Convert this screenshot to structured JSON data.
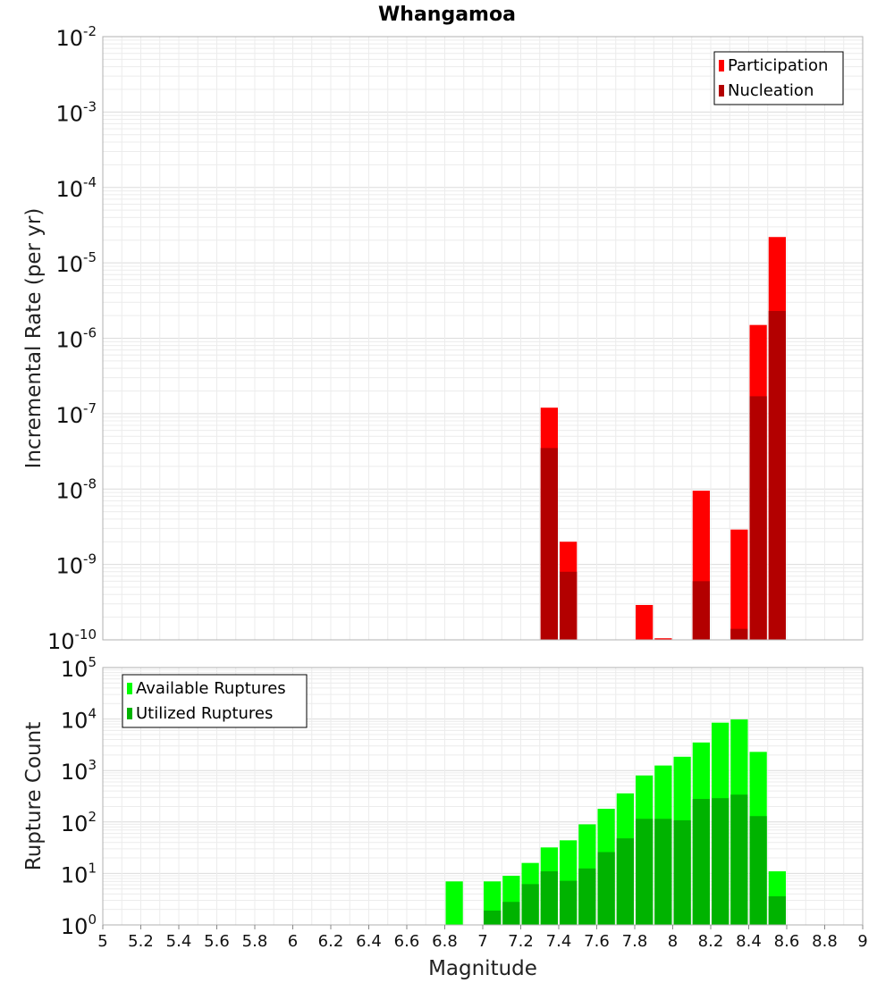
{
  "title": "Whangamoa",
  "chart_data": [
    {
      "type": "bar",
      "ylabel": "Incremental Rate (per yr)",
      "yscale": "log",
      "ylim": [
        1e-10,
        0.01
      ],
      "xlim": [
        5,
        9
      ],
      "grid": true,
      "legend_position": "top-right",
      "ytick_exps": [
        "-10",
        "-9",
        "-8",
        "-7",
        "-6",
        "-5",
        "-4",
        "-3",
        "-2"
      ],
      "series": [
        {
          "name": "Participation",
          "color": "#ff0000",
          "points": [
            {
              "x": 7.35,
              "y": 1.2e-07
            },
            {
              "x": 7.45,
              "y": 2e-09
            },
            {
              "x": 7.85,
              "y": 2.9e-10
            },
            {
              "x": 7.95,
              "y": 1.05e-10
            },
            {
              "x": 8.15,
              "y": 9.5e-09
            },
            {
              "x": 8.35,
              "y": 2.9e-09
            },
            {
              "x": 8.45,
              "y": 1.5e-06
            },
            {
              "x": 8.55,
              "y": 2.2e-05
            }
          ]
        },
        {
          "name": "Nucleation",
          "color": "#b30000",
          "points": [
            {
              "x": 7.35,
              "y": 3.5e-08
            },
            {
              "x": 7.45,
              "y": 8e-10
            },
            {
              "x": 8.15,
              "y": 6e-10
            },
            {
              "x": 8.35,
              "y": 1.4e-10
            },
            {
              "x": 8.45,
              "y": 1.7e-07
            },
            {
              "x": 8.55,
              "y": 2.3e-06
            }
          ]
        }
      ]
    },
    {
      "type": "bar",
      "xlabel": "Magnitude",
      "ylabel": "Rupture Count",
      "yscale": "log",
      "ylim": [
        1,
        100000
      ],
      "xlim": [
        5,
        9
      ],
      "grid": true,
      "legend_position": "top-left",
      "ytick_exps": [
        "0",
        "1",
        "2",
        "3",
        "4",
        "5"
      ],
      "xticks": [
        "5",
        "5.2",
        "5.4",
        "5.6",
        "5.8",
        "6",
        "6.2",
        "6.4",
        "6.6",
        "6.8",
        "7",
        "7.2",
        "7.4",
        "7.6",
        "7.8",
        "8",
        "8.2",
        "8.4",
        "8.6",
        "8.8",
        "9"
      ],
      "series": [
        {
          "name": "Available Ruptures",
          "color": "#00ff00",
          "points": [
            {
              "x": 6.85,
              "y": 7
            },
            {
              "x": 7.05,
              "y": 7
            },
            {
              "x": 7.15,
              "y": 9
            },
            {
              "x": 7.25,
              "y": 16
            },
            {
              "x": 7.35,
              "y": 32
            },
            {
              "x": 7.45,
              "y": 44
            },
            {
              "x": 7.55,
              "y": 90
            },
            {
              "x": 7.65,
              "y": 180
            },
            {
              "x": 7.75,
              "y": 360
            },
            {
              "x": 7.85,
              "y": 800
            },
            {
              "x": 7.95,
              "y": 1250
            },
            {
              "x": 8.05,
              "y": 1850
            },
            {
              "x": 8.15,
              "y": 3500
            },
            {
              "x": 8.25,
              "y": 8500
            },
            {
              "x": 8.35,
              "y": 9800
            },
            {
              "x": 8.45,
              "y": 2300
            },
            {
              "x": 8.55,
              "y": 11
            }
          ]
        },
        {
          "name": "Utilized Ruptures",
          "color": "#00b300",
          "points": [
            {
              "x": 7.05,
              "y": 1.9
            },
            {
              "x": 7.15,
              "y": 2.8
            },
            {
              "x": 7.25,
              "y": 6.2
            },
            {
              "x": 7.35,
              "y": 11
            },
            {
              "x": 7.45,
              "y": 7.2
            },
            {
              "x": 7.55,
              "y": 12.5
            },
            {
              "x": 7.65,
              "y": 26
            },
            {
              "x": 7.75,
              "y": 48
            },
            {
              "x": 7.85,
              "y": 115
            },
            {
              "x": 7.95,
              "y": 115
            },
            {
              "x": 8.05,
              "y": 108
            },
            {
              "x": 8.15,
              "y": 280
            },
            {
              "x": 8.25,
              "y": 290
            },
            {
              "x": 8.35,
              "y": 340
            },
            {
              "x": 8.45,
              "y": 130
            },
            {
              "x": 8.55,
              "y": 3.6
            }
          ]
        }
      ]
    }
  ]
}
